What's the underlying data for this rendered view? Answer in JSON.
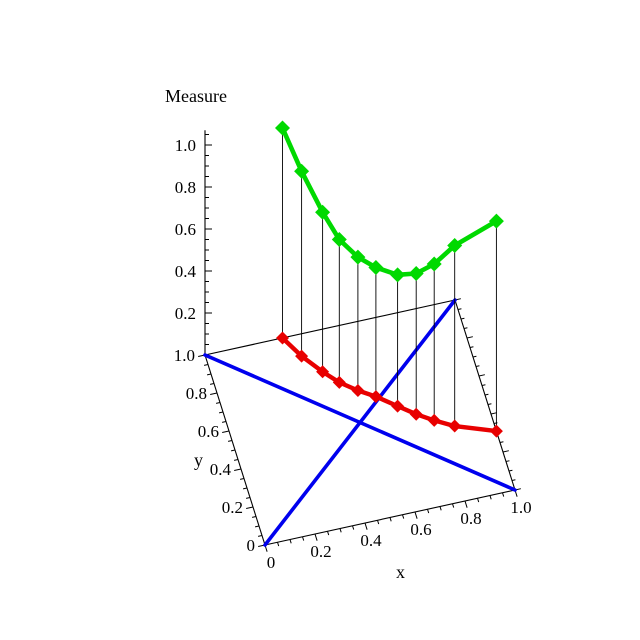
{
  "figure": {
    "background": "#ffffff"
  },
  "chart_data": {
    "type": "line",
    "projection": "3d",
    "zlabel": "Measure",
    "xlabel": "x",
    "ylabel": "y",
    "xlim": [
      0,
      1
    ],
    "ylim": [
      0,
      1
    ],
    "zlim": [
      0,
      1.05
    ],
    "minor_tick_step": 0.05,
    "x_ticks": {
      "values": [
        0,
        0.2,
        0.4,
        0.6,
        0.8,
        1.0
      ],
      "labels": [
        "0",
        "0.2",
        "0.4",
        "0.6",
        "0.8",
        "1.0"
      ]
    },
    "y_ticks": {
      "values": [
        0,
        0.2,
        0.4,
        0.6,
        0.8,
        1.0
      ],
      "labels": [
        "0",
        "0.2",
        "0.4",
        "0.6",
        "0.8",
        "1.0"
      ]
    },
    "z_ticks": {
      "values": [
        0.2,
        0.4,
        0.6,
        0.8,
        1.0
      ],
      "labels": [
        "0.2",
        "0.4",
        "0.6",
        "0.8",
        "1.0"
      ]
    },
    "points": [
      {
        "x": 0.31,
        "y": 1.0,
        "z": 1.0
      },
      {
        "x": 0.36,
        "y": 0.89,
        "z": 0.88
      },
      {
        "x": 0.42,
        "y": 0.79,
        "z": 0.76
      },
      {
        "x": 0.47,
        "y": 0.72,
        "z": 0.68
      },
      {
        "x": 0.53,
        "y": 0.66,
        "z": 0.635
      },
      {
        "x": 0.59,
        "y": 0.61,
        "z": 0.615
      },
      {
        "x": 0.66,
        "y": 0.54,
        "z": 0.625
      },
      {
        "x": 0.72,
        "y": 0.48,
        "z": 0.67
      },
      {
        "x": 0.78,
        "y": 0.43,
        "z": 0.745
      },
      {
        "x": 0.85,
        "y": 0.38,
        "z": 0.86
      },
      {
        "x": 1.0,
        "y": 0.31,
        "z": 1.0
      }
    ],
    "series": [
      {
        "name": "measure-curve",
        "kind": "curve3d",
        "color": "#00d900",
        "marker": "diamond"
      },
      {
        "name": "front-curve",
        "kind": "curve-base",
        "color": "#e80000",
        "marker": "diamond"
      },
      {
        "name": "diagonal-ascending",
        "kind": "diagonal",
        "color": "#0000ee",
        "points": [
          [
            0,
            0
          ],
          [
            1,
            1
          ]
        ]
      },
      {
        "name": "diagonal-descending",
        "kind": "diagonal",
        "color": "#0000ee",
        "points": [
          [
            0,
            1
          ],
          [
            1,
            0
          ]
        ]
      }
    ],
    "stems": {
      "color": "#000000"
    }
  }
}
